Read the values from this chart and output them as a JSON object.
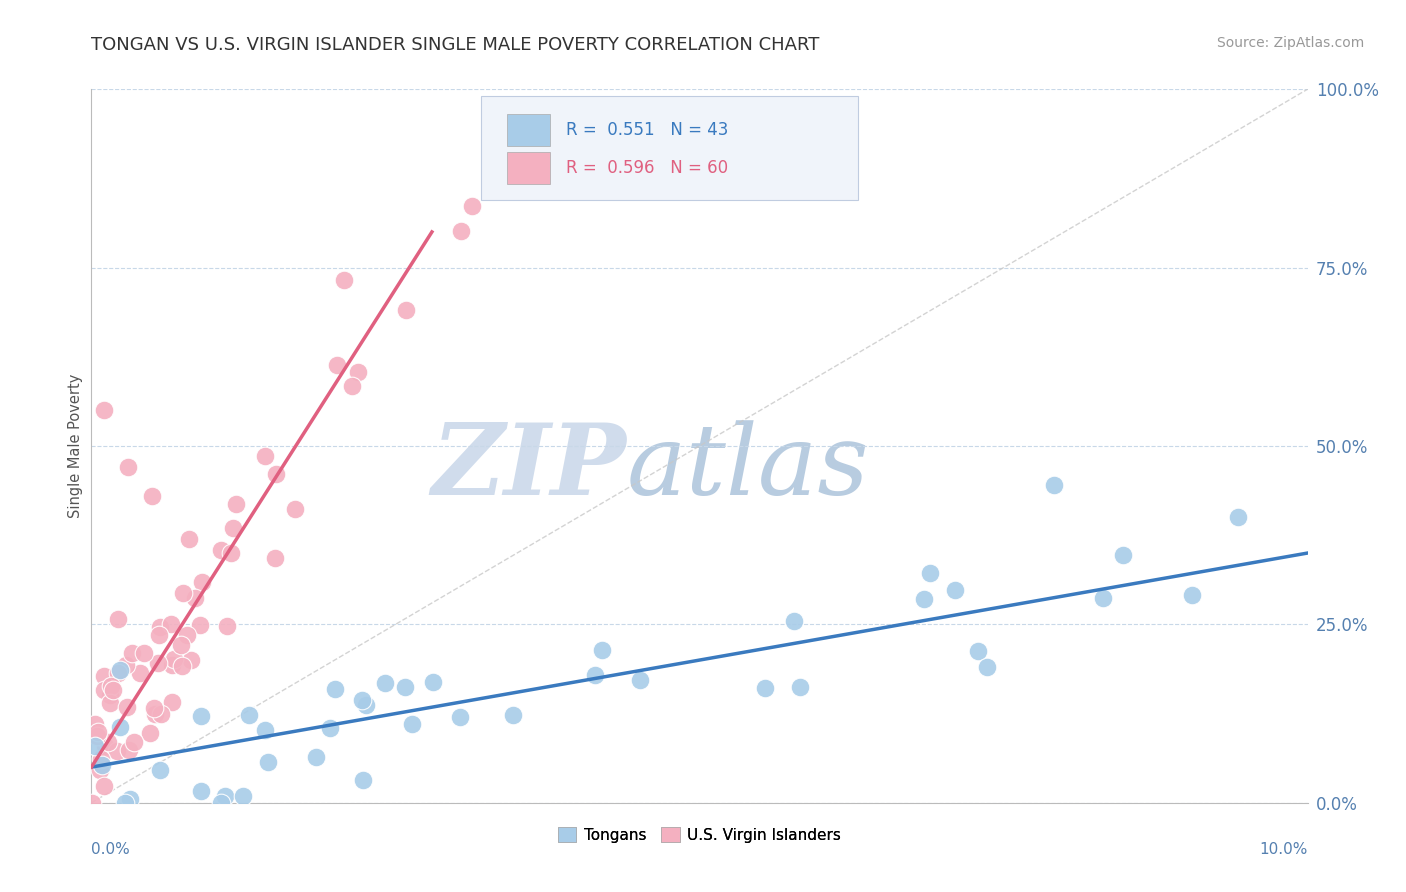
{
  "title": "TONGAN VS U.S. VIRGIN ISLANDER SINGLE MALE POVERTY CORRELATION CHART",
  "source": "Source: ZipAtlas.com",
  "ylabel": "Single Male Poverty",
  "ytick_labels": [
    "0.0%",
    "25.0%",
    "50.0%",
    "75.0%",
    "100.0%"
  ],
  "ytick_values": [
    0.0,
    0.25,
    0.5,
    0.75,
    1.0
  ],
  "tongan_line_color": "#3a7abf",
  "virgin_line_color": "#e06080",
  "tongan_scatter_color": "#a8cce8",
  "virgin_scatter_color": "#f4b0c0",
  "background_color": "#ffffff",
  "grid_color": "#c8d8e8",
  "watermark_zip_color": "#d0dcec",
  "watermark_atlas_color": "#b8cce0",
  "legend_box_color": "#f0f4fa",
  "legend_border_color": "#c0cce0",
  "title_color": "#333333",
  "source_color": "#999999",
  "ylabel_color": "#555555",
  "axis_label_color": "#5580b0",
  "right_tick_color": "#5580b0",
  "ref_line_color": "#c8c8c8"
}
